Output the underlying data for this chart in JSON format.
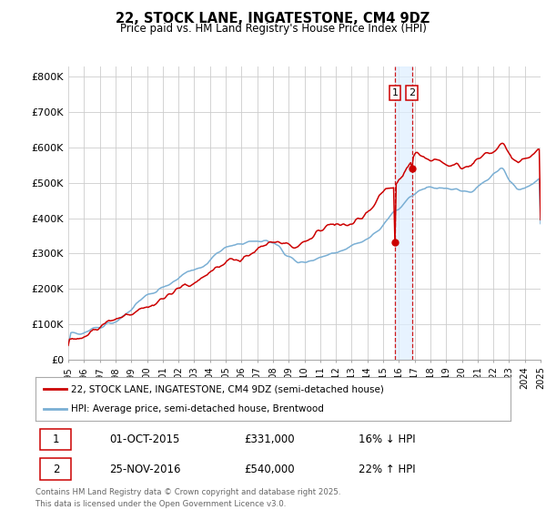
{
  "title_line1": "22, STOCK LANE, INGATESTONE, CM4 9DZ",
  "title_line2": "Price paid vs. HM Land Registry's House Price Index (HPI)",
  "ytick_labels": [
    "£0",
    "£100K",
    "£200K",
    "£300K",
    "£400K",
    "£500K",
    "£600K",
    "£700K",
    "£800K"
  ],
  "yticks": [
    0,
    100000,
    200000,
    300000,
    400000,
    500000,
    600000,
    700000,
    800000
  ],
  "ylim": [
    0,
    830000
  ],
  "property_color": "#cc0000",
  "hpi_color": "#7aafd4",
  "vline_color": "#cc0000",
  "shade_color": "#ddeeff",
  "legend_line1": "22, STOCK LANE, INGATESTONE, CM4 9DZ (semi-detached house)",
  "legend_line2": "HPI: Average price, semi-detached house, Brentwood",
  "footnote": "Contains HM Land Registry data © Crown copyright and database right 2025.\nThis data is licensed under the Open Government Licence v3.0.",
  "table_row1": [
    "1",
    "01-OCT-2015",
    "£331,000",
    "16% ↓ HPI"
  ],
  "table_row2": [
    "2",
    "25-NOV-2016",
    "£540,000",
    "22% ↑ HPI"
  ],
  "background_color": "#ffffff",
  "grid_color": "#cccccc",
  "sale1_price": 331000,
  "sale2_price": 540000
}
